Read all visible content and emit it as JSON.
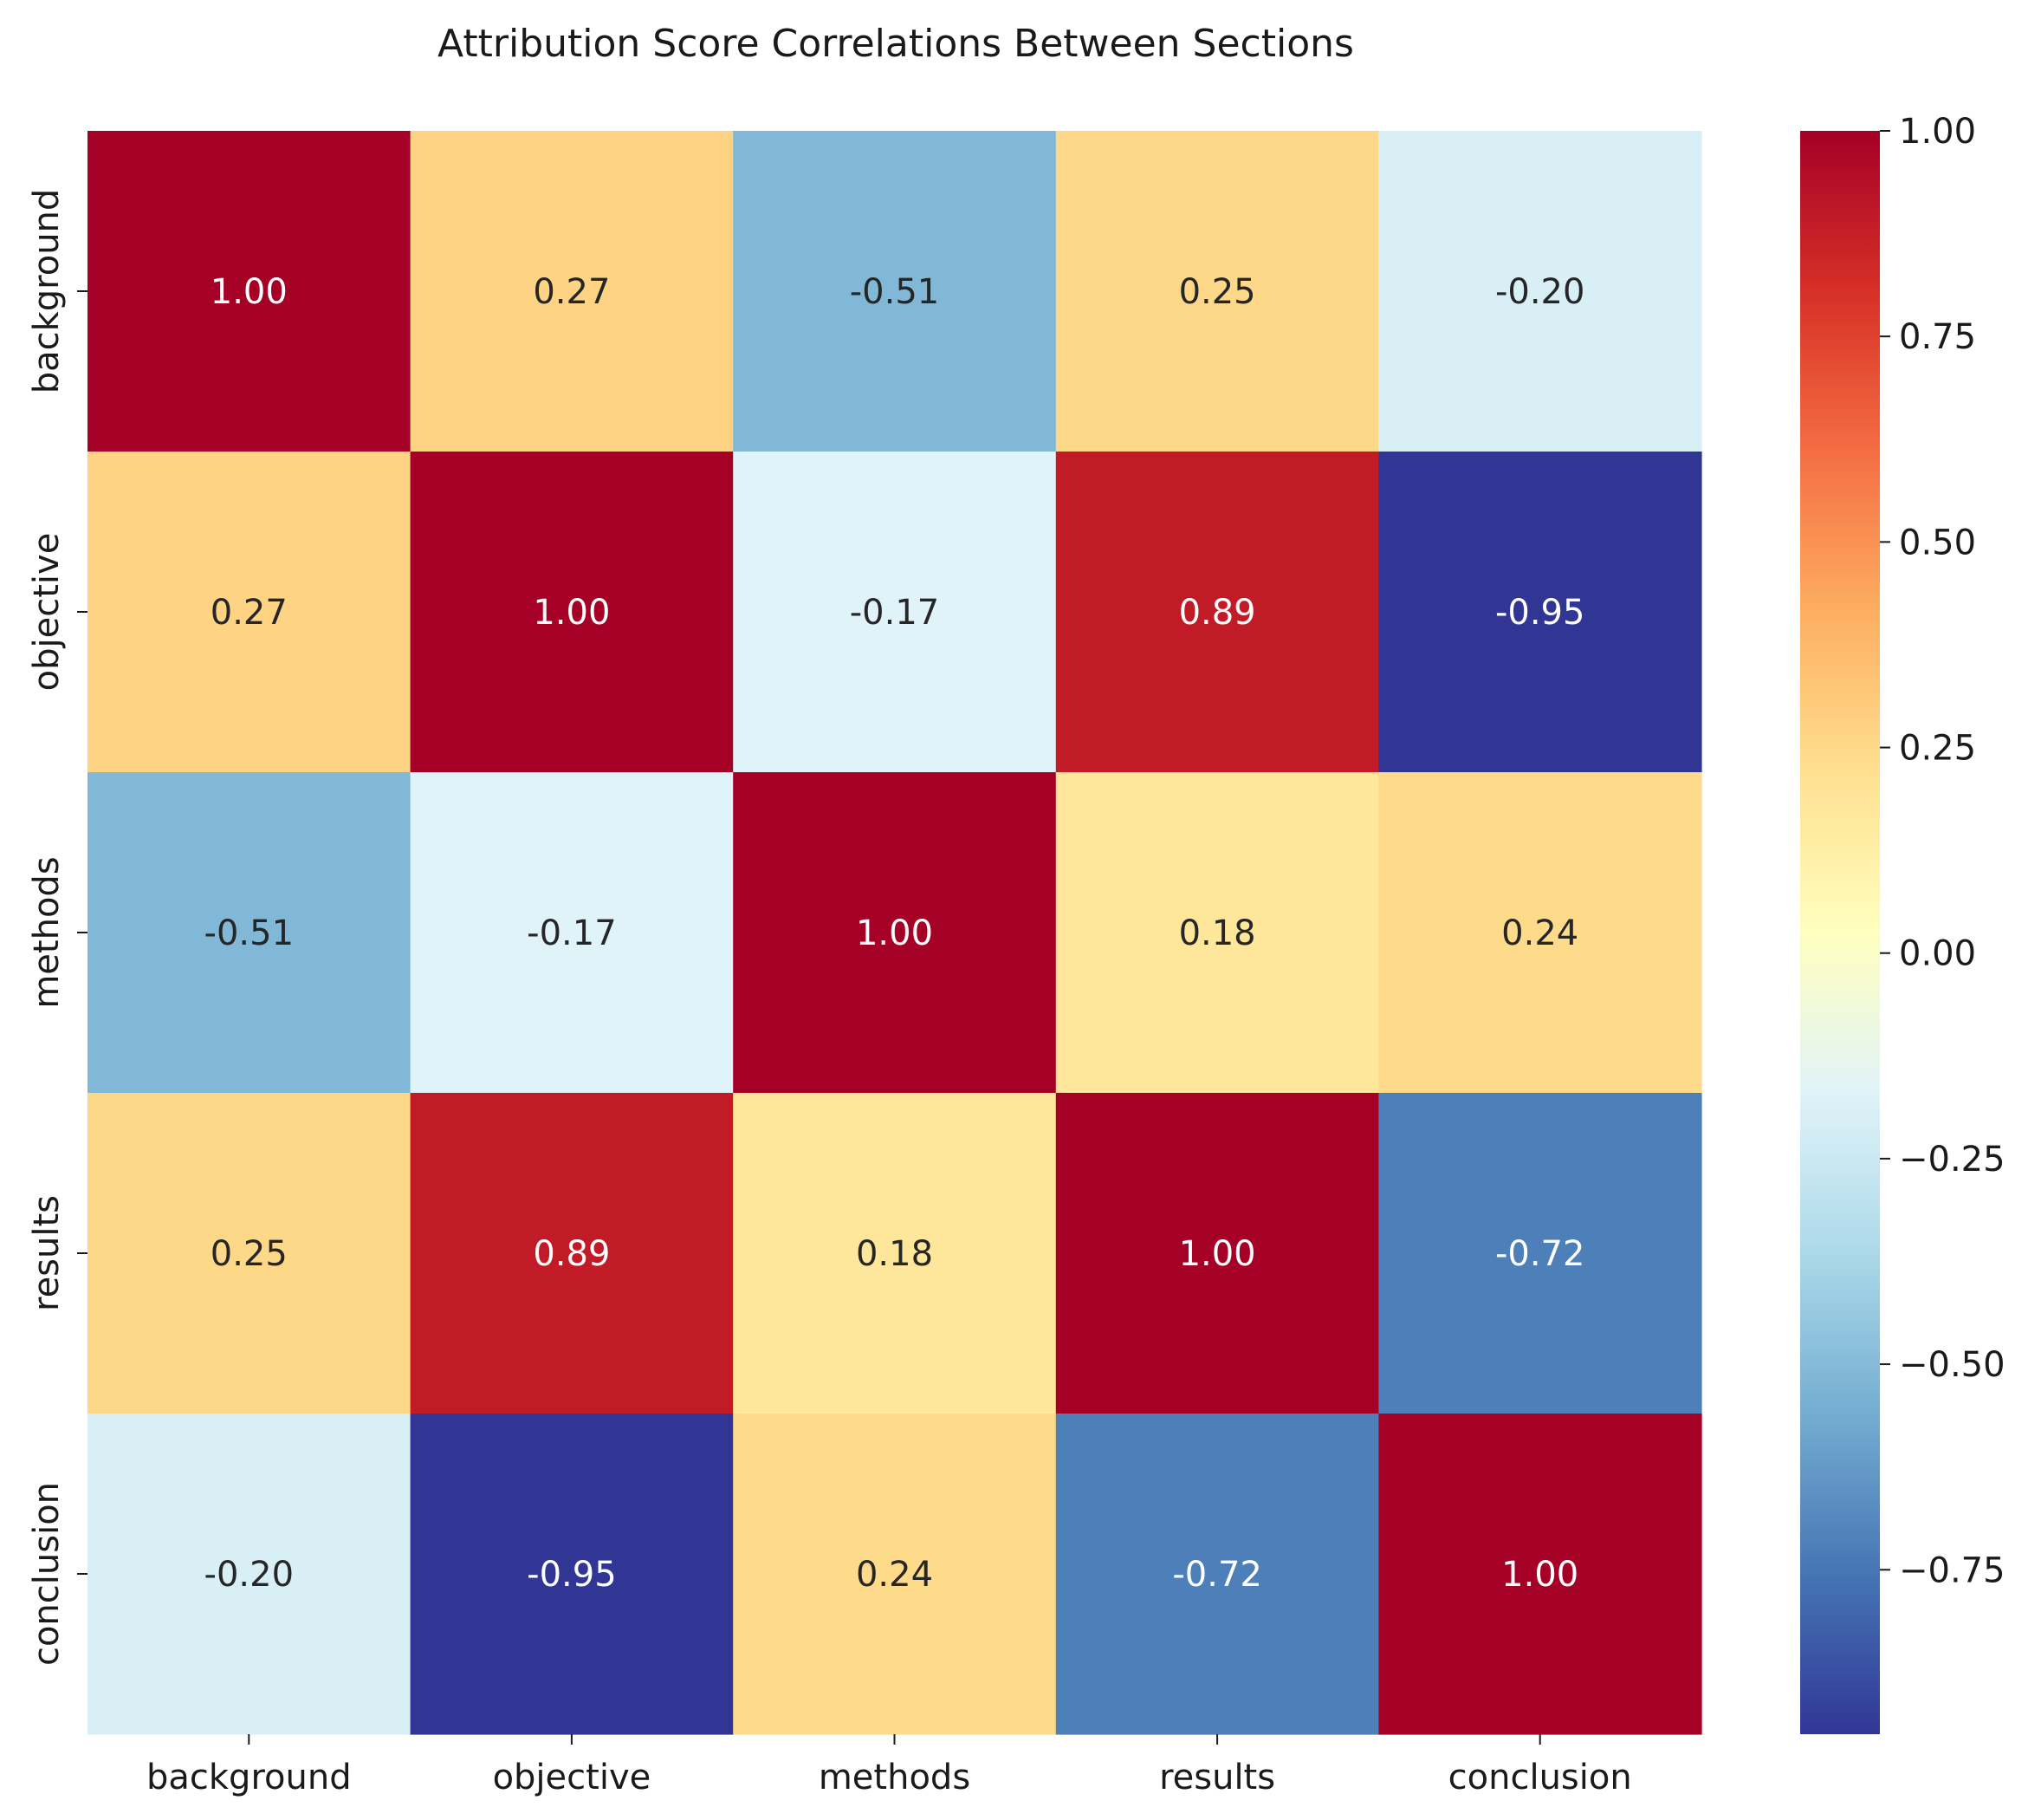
{
  "chart_data": {
    "type": "heatmap",
    "title": "Attribution Score Correlations Between Sections",
    "xlabel": "",
    "ylabel": "",
    "x_categories": [
      "background",
      "objective",
      "methods",
      "results",
      "conclusion"
    ],
    "y_categories": [
      "background",
      "objective",
      "methods",
      "results",
      "conclusion"
    ],
    "values": [
      [
        1.0,
        0.27,
        -0.51,
        0.25,
        -0.2
      ],
      [
        0.27,
        1.0,
        -0.17,
        0.89,
        -0.95
      ],
      [
        -0.51,
        -0.17,
        1.0,
        0.18,
        0.24
      ],
      [
        0.25,
        0.89,
        0.18,
        1.0,
        -0.72
      ],
      [
        -0.2,
        -0.95,
        0.24,
        -0.72,
        1.0
      ]
    ],
    "value_format": "0.00",
    "colormap": "RdYlBu_r",
    "colorbar": {
      "range": [
        -0.95,
        1.0
      ],
      "ticks": [
        -0.75,
        -0.5,
        -0.25,
        0.0,
        0.25,
        0.5,
        0.75,
        1.0
      ],
      "tick_labels": [
        "−0.75",
        "−0.50",
        "−0.25",
        "0.00",
        "0.25",
        "0.50",
        "0.75",
        "1.00"
      ]
    },
    "grid": false
  }
}
